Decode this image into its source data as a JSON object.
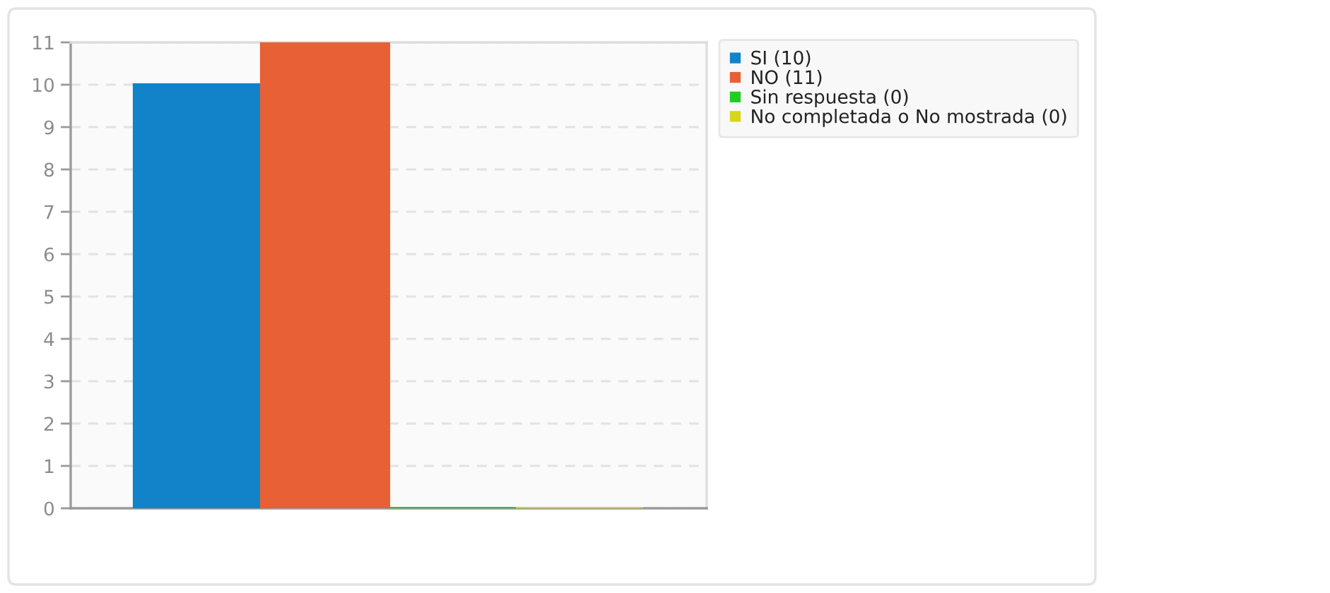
{
  "chart_data": {
    "type": "bar",
    "categories": [
      null
    ],
    "series": [
      {
        "name": "SI (10)",
        "color": "#1283c9",
        "values": [
          10
        ]
      },
      {
        "name": "NO (11)",
        "color": "#e86035",
        "values": [
          11
        ]
      },
      {
        "name": "Sin respuesta (0)",
        "color": "#22cc22",
        "values": [
          0
        ]
      },
      {
        "name": "No completada o No mostrada (0)",
        "color": "#d6d61a",
        "values": [
          0
        ]
      }
    ],
    "ylim": [
      0,
      11
    ],
    "yticks": [
      0,
      1,
      2,
      3,
      4,
      5,
      6,
      7,
      8,
      9,
      10,
      11
    ],
    "grid": "y",
    "legend": "right",
    "tick_labels": "y"
  }
}
